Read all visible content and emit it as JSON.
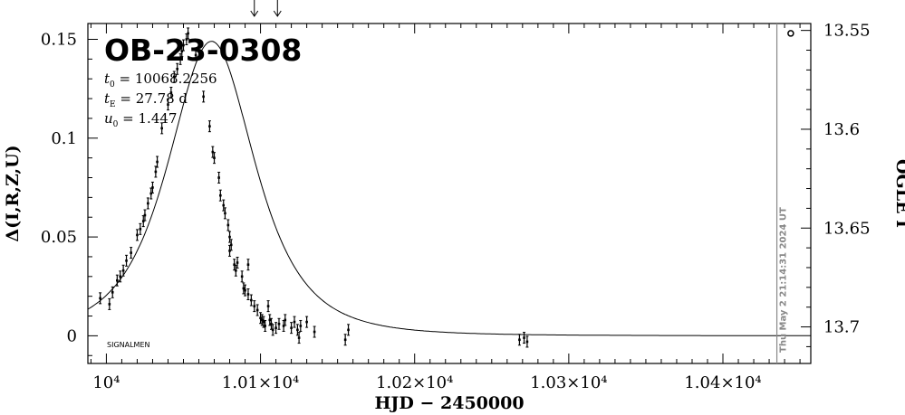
{
  "chart_data": {
    "type": "scatter",
    "title": "OB-23-0308",
    "xlabel": "HJD − 2450000",
    "ylabel_left": "Δ(I,R,Z,U)",
    "ylabel_right": "OGLE I",
    "xlim": [
      9988,
      10457
    ],
    "ylim": [
      -0.014,
      0.158
    ],
    "x_ticks": [
      10000,
      10100,
      10200,
      10300,
      10400
    ],
    "x_tick_labels": [
      "10⁴",
      "1.01×10⁴",
      "1.02×10⁴",
      "1.03×10⁴",
      "1.04×10⁴"
    ],
    "y_ticks": [
      0,
      0.05,
      0.1,
      0.15
    ],
    "y_tick_labels": [
      "0",
      "0.05",
      "0.1",
      "0.15"
    ],
    "right_ticks": [
      {
        "label": "13.55",
        "delta": 0.1545
      },
      {
        "label": "13.6",
        "delta": 0.1045
      },
      {
        "label": "13.65",
        "delta": 0.0545
      },
      {
        "label": "13.7",
        "delta": 0.0045
      }
    ],
    "model": {
      "t0": 10068.2256,
      "tE": 27.78,
      "u0": 1.447
    },
    "params": [
      {
        "sym": "t",
        "sub": "0",
        "text": " = 10068.2256"
      },
      {
        "sym": "t",
        "sub": "E",
        "text": " = 27.78 d"
      },
      {
        "sym": "u",
        "sub": "0",
        "text": " = 1.447"
      }
    ],
    "arrows_x": [
      10096,
      10111
    ],
    "now_x": 10435,
    "now_label": "Thu May  2 21:14:31 2024 UT",
    "footer_label": "SIGNALMEN",
    "marker_x": 10444,
    "marker_y": 0.153,
    "grid": false,
    "points": [
      [
        9996,
        0.019
      ],
      [
        10002,
        0.016
      ],
      [
        10004,
        0.022
      ],
      [
        10007,
        0.028
      ],
      [
        10009,
        0.03
      ],
      [
        10011,
        0.033
      ],
      [
        10013,
        0.038
      ],
      [
        10016,
        0.042
      ],
      [
        10020,
        0.051
      ],
      [
        10022,
        0.054
      ],
      [
        10024,
        0.058
      ],
      [
        10025,
        0.061
      ],
      [
        10027,
        0.067
      ],
      [
        10029,
        0.072
      ],
      [
        10030,
        0.075
      ],
      [
        10032,
        0.083
      ],
      [
        10033,
        0.088
      ],
      [
        10036,
        0.105
      ],
      [
        10040,
        0.117
      ],
      [
        10042,
        0.123
      ],
      [
        10044,
        0.131
      ],
      [
        10046,
        0.135
      ],
      [
        10048,
        0.14
      ],
      [
        10049,
        0.144
      ],
      [
        10050,
        0.147
      ],
      [
        10052,
        0.15
      ],
      [
        10053,
        0.153
      ],
      [
        10058,
        0.142
      ],
      [
        10063,
        0.121
      ],
      [
        10067,
        0.106
      ],
      [
        10069,
        0.093
      ],
      [
        10070,
        0.09
      ],
      [
        10073,
        0.08
      ],
      [
        10074,
        0.071
      ],
      [
        10076,
        0.066
      ],
      [
        10077,
        0.062
      ],
      [
        10079,
        0.056
      ],
      [
        10080,
        0.043
      ],
      [
        10081,
        0.046
      ],
      [
        10083,
        0.036
      ],
      [
        10084,
        0.033
      ],
      [
        10085,
        0.037
      ],
      [
        10088,
        0.03
      ],
      [
        10089,
        0.024
      ],
      [
        10090,
        0.023
      ],
      [
        10092,
        0.021
      ],
      [
        10094,
        0.018
      ],
      [
        10096,
        0.015
      ],
      [
        10098,
        0.013
      ],
      [
        10100,
        0.009
      ],
      [
        10101,
        0.008
      ],
      [
        10102,
        0.007
      ],
      [
        10103,
        0.005
      ],
      [
        10105,
        0.015
      ],
      [
        10106,
        0.008
      ],
      [
        10107,
        0.006
      ],
      [
        10108,
        0.003
      ],
      [
        10110,
        0.004
      ],
      [
        10112,
        0.006
      ],
      [
        10116,
        0.008
      ],
      [
        10122,
        0.007
      ],
      [
        10124,
        0.003
      ],
      [
        10126,
        0.005
      ],
      [
        10130,
        0.007
      ],
      [
        10135,
        0.002
      ],
      [
        10080,
        0.05
      ],
      [
        10092,
        0.036
      ],
      [
        10125,
        -0.001
      ],
      [
        10155,
        -0.002
      ],
      [
        10268,
        -0.002
      ],
      [
        10271,
        -0.001
      ],
      [
        10273,
        -0.003
      ],
      [
        10157,
        0.003
      ],
      [
        10120,
        0.004
      ],
      [
        10115,
        0.005
      ]
    ]
  }
}
